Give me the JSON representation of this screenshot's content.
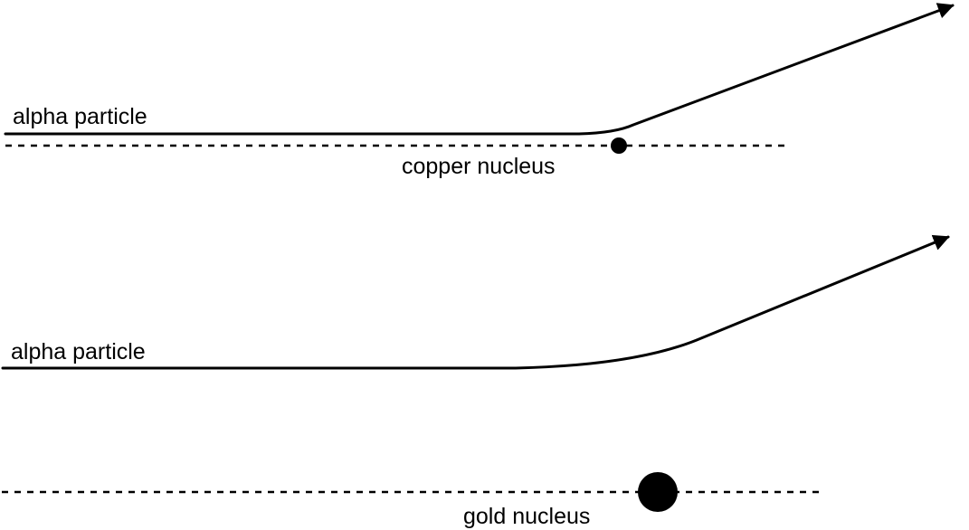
{
  "panels": {
    "copper": {
      "particle_label": "alpha particle",
      "nucleus_label": "copper nucleus"
    },
    "gold": {
      "particle_label": "alpha particle",
      "nucleus_label": "gold nucleus"
    }
  },
  "colors": {
    "stroke": "#000000",
    "background": "#ffffff"
  }
}
